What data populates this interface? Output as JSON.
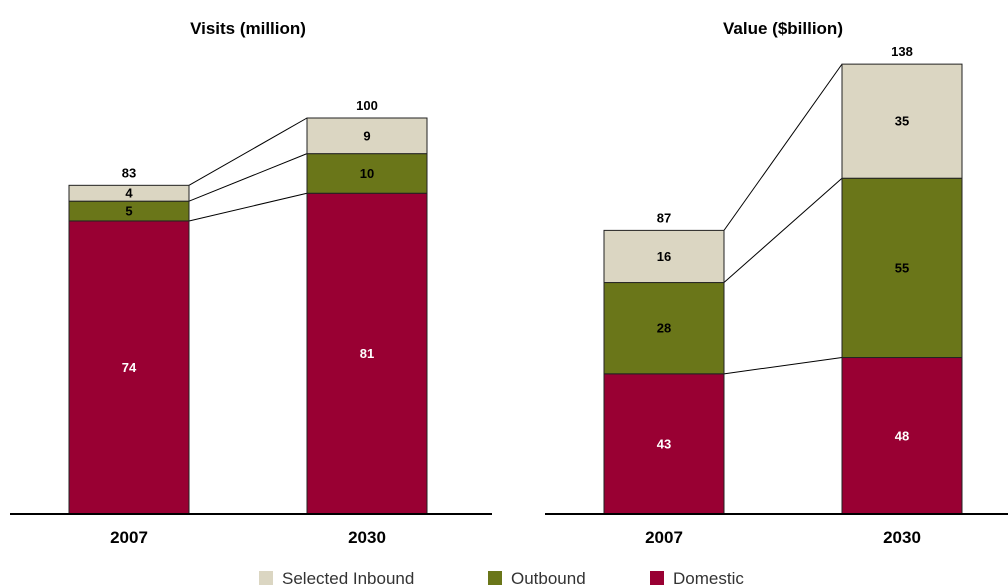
{
  "chart_data": [
    {
      "type": "bar",
      "stacked": true,
      "title": "Visits (million)",
      "categories": [
        "2007",
        "2030"
      ],
      "series": [
        {
          "name": "Domestic",
          "values": [
            74,
            81
          ]
        },
        {
          "name": "Outbound",
          "values": [
            5,
            10
          ]
        },
        {
          "name": "Selected Inbound",
          "values": [
            4,
            9
          ]
        }
      ],
      "totals": [
        83,
        100
      ],
      "connector_lines": true,
      "grid": false
    },
    {
      "type": "bar",
      "stacked": true,
      "title": "Value ($billion)",
      "categories": [
        "2007",
        "2030"
      ],
      "series": [
        {
          "name": "Domestic",
          "values": [
            43,
            48
          ]
        },
        {
          "name": "Outbound",
          "values": [
            28,
            55
          ]
        },
        {
          "name": "Selected Inbound",
          "values": [
            16,
            35
          ]
        }
      ],
      "totals": [
        87,
        138
      ],
      "connector_lines": true,
      "grid": false
    }
  ],
  "legend": {
    "placement": "bottom-center",
    "items": [
      {
        "label": "Selected Inbound",
        "color": "#dbd6c2"
      },
      {
        "label": "Outbound",
        "color": "#6a7619"
      },
      {
        "label": "Domestic",
        "color": "#990033"
      }
    ]
  },
  "colors": {
    "Domestic": "#990033",
    "Outbound": "#6a7619",
    "Selected Inbound": "#dbd6c2",
    "label_on_dark": "#ffffff",
    "label_on_light": "#000000"
  }
}
